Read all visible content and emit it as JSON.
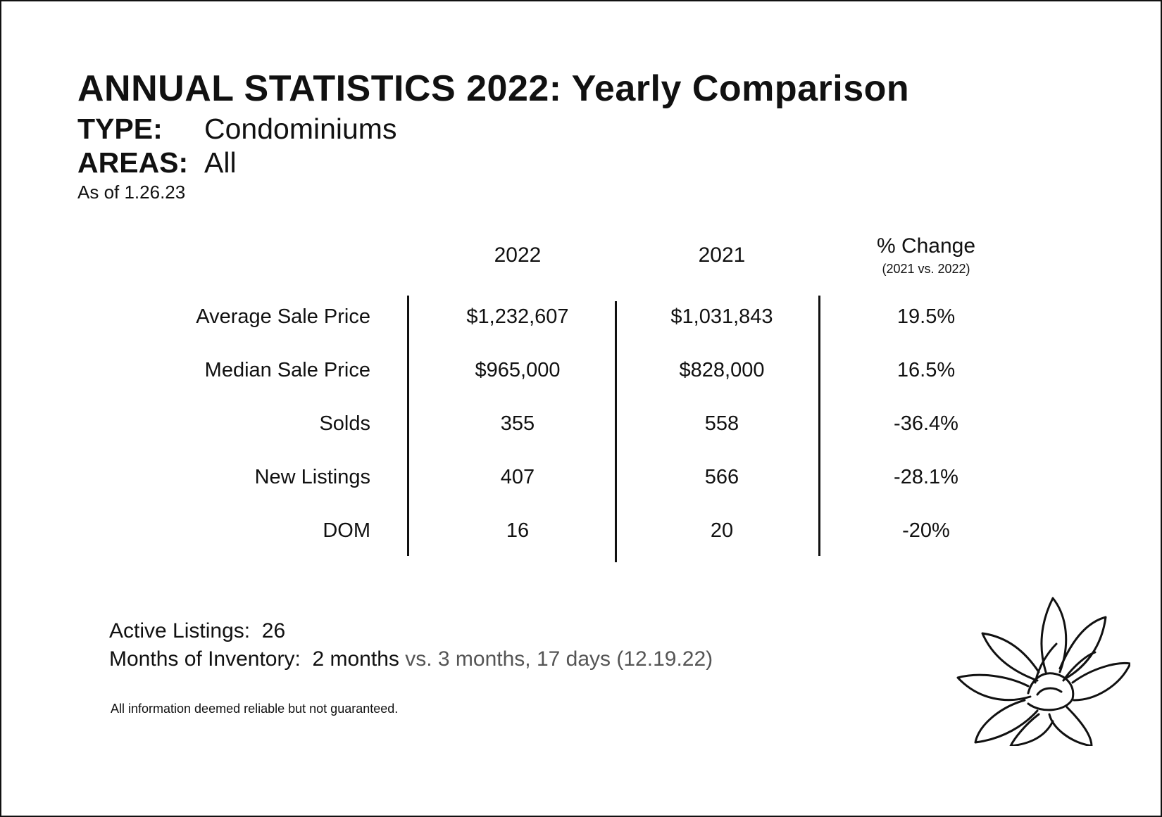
{
  "header": {
    "title": "ANNUAL STATISTICS 2022: Yearly Comparison",
    "type_label": "TYPE:",
    "type_value": "Condominiums",
    "areas_label": "AREAS:",
    "areas_value": "All",
    "as_of": "As of 1.26.23"
  },
  "table": {
    "columns": {
      "col_2022": "2022",
      "col_2021": "2021",
      "col_change": "% Change",
      "col_change_sub": "(2021 vs. 2022)"
    },
    "rows": [
      {
        "label": "Average Sale Price",
        "v2022": "$1,232,607",
        "v2021": "$1,031,843",
        "change": "19.5%"
      },
      {
        "label": "Median Sale Price",
        "v2022": "$965,000",
        "v2021": "$828,000",
        "change": "16.5%"
      },
      {
        "label": "Solds",
        "v2022": "355",
        "v2021": "558",
        "change": "-36.4%"
      },
      {
        "label": "New Listings",
        "v2022": "407",
        "v2021": "566",
        "change": "-28.1%"
      },
      {
        "label": "DOM",
        "v2022": "16",
        "v2021": "20",
        "change": "-20%"
      }
    ]
  },
  "summary": {
    "active_label": "Active Listings:",
    "active_value": "26",
    "inventory_label": "Months of Inventory:",
    "inventory_value": "2 months",
    "inventory_compare": "vs. 3 months, 17 days (12.19.22)"
  },
  "footer": {
    "disclaimer": "All information deemed reliable but not guaranteed."
  },
  "decoration": {
    "icon": "lotus-flower-icon"
  }
}
